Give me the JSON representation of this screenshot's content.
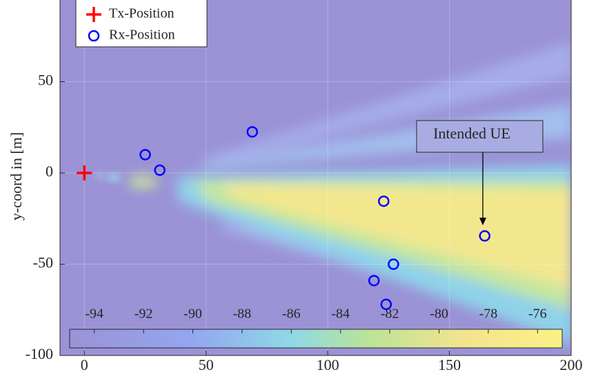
{
  "chart_data": {
    "type": "scatter",
    "ylabel": "y-coord in [m]",
    "xlim": [
      -10,
      200
    ],
    "ylim": [
      -100,
      100
    ],
    "xticks": [
      0,
      50,
      100,
      150,
      200
    ],
    "yticks": [
      -100,
      -50,
      0,
      50
    ],
    "grid": true,
    "legend": "upper left",
    "series": [
      {
        "name": "Tx-Position",
        "color": "#ff0000",
        "marker": "+",
        "x": [
          0
        ],
        "values": [
          0
        ]
      },
      {
        "name": "Rx-Position",
        "color": "#0000ff",
        "marker": "o",
        "x": [
          25,
          31,
          69,
          123,
          127,
          119,
          124,
          164.5
        ],
        "values": [
          10,
          1.5,
          22.5,
          -15.5,
          -50,
          -59,
          -72,
          -34.5
        ]
      }
    ],
    "annotations": [
      {
        "text": "Intended UE"
      }
    ],
    "colorbar": {
      "lim": [
        -95,
        -75
      ],
      "ticks": [
        -94,
        -92,
        -90,
        -88,
        -86,
        -84,
        -82,
        -80,
        -78,
        -76
      ]
    }
  }
}
